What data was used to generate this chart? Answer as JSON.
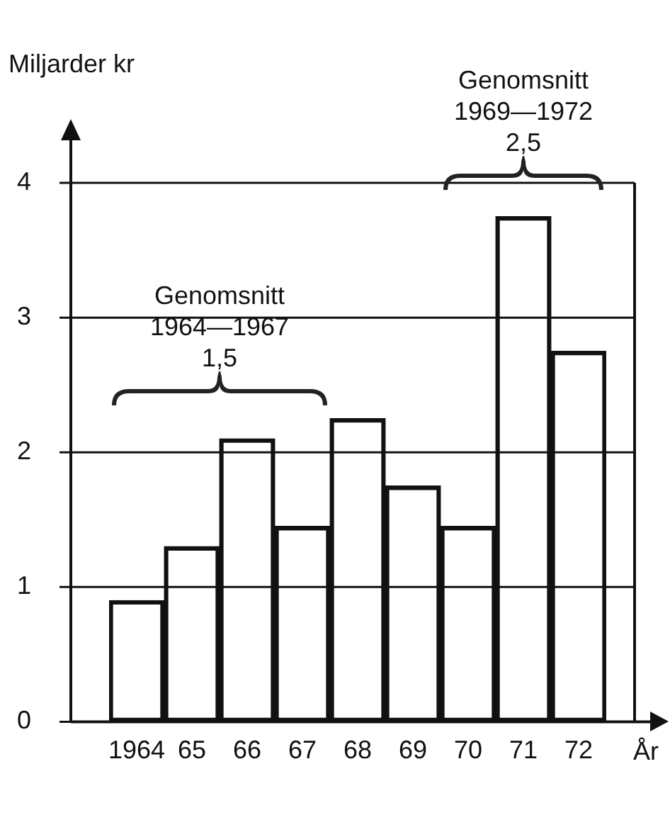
{
  "chart_data": {
    "type": "bar",
    "xlabel": "År",
    "ylabel": "Miljarder kr",
    "categories": [
      "1964",
      "65",
      "66",
      "67",
      "68",
      "69",
      "70",
      "71",
      "72"
    ],
    "series": [
      {
        "color": "#111111",
        "values": [
          0.9,
          1.3,
          2.1,
          1.45,
          2.25,
          1.75,
          1.45,
          3.75,
          2.75
        ]
      }
    ],
    "ylim": [
      0,
      4.4
    ],
    "yticks": [
      0,
      1,
      2,
      3,
      4
    ],
    "grid": "y",
    "legend": false,
    "annotations": [
      "Genomsnitt\n1964—1967\n1,5",
      "Genomsnitt\n1969—1972\n2,5"
    ]
  }
}
